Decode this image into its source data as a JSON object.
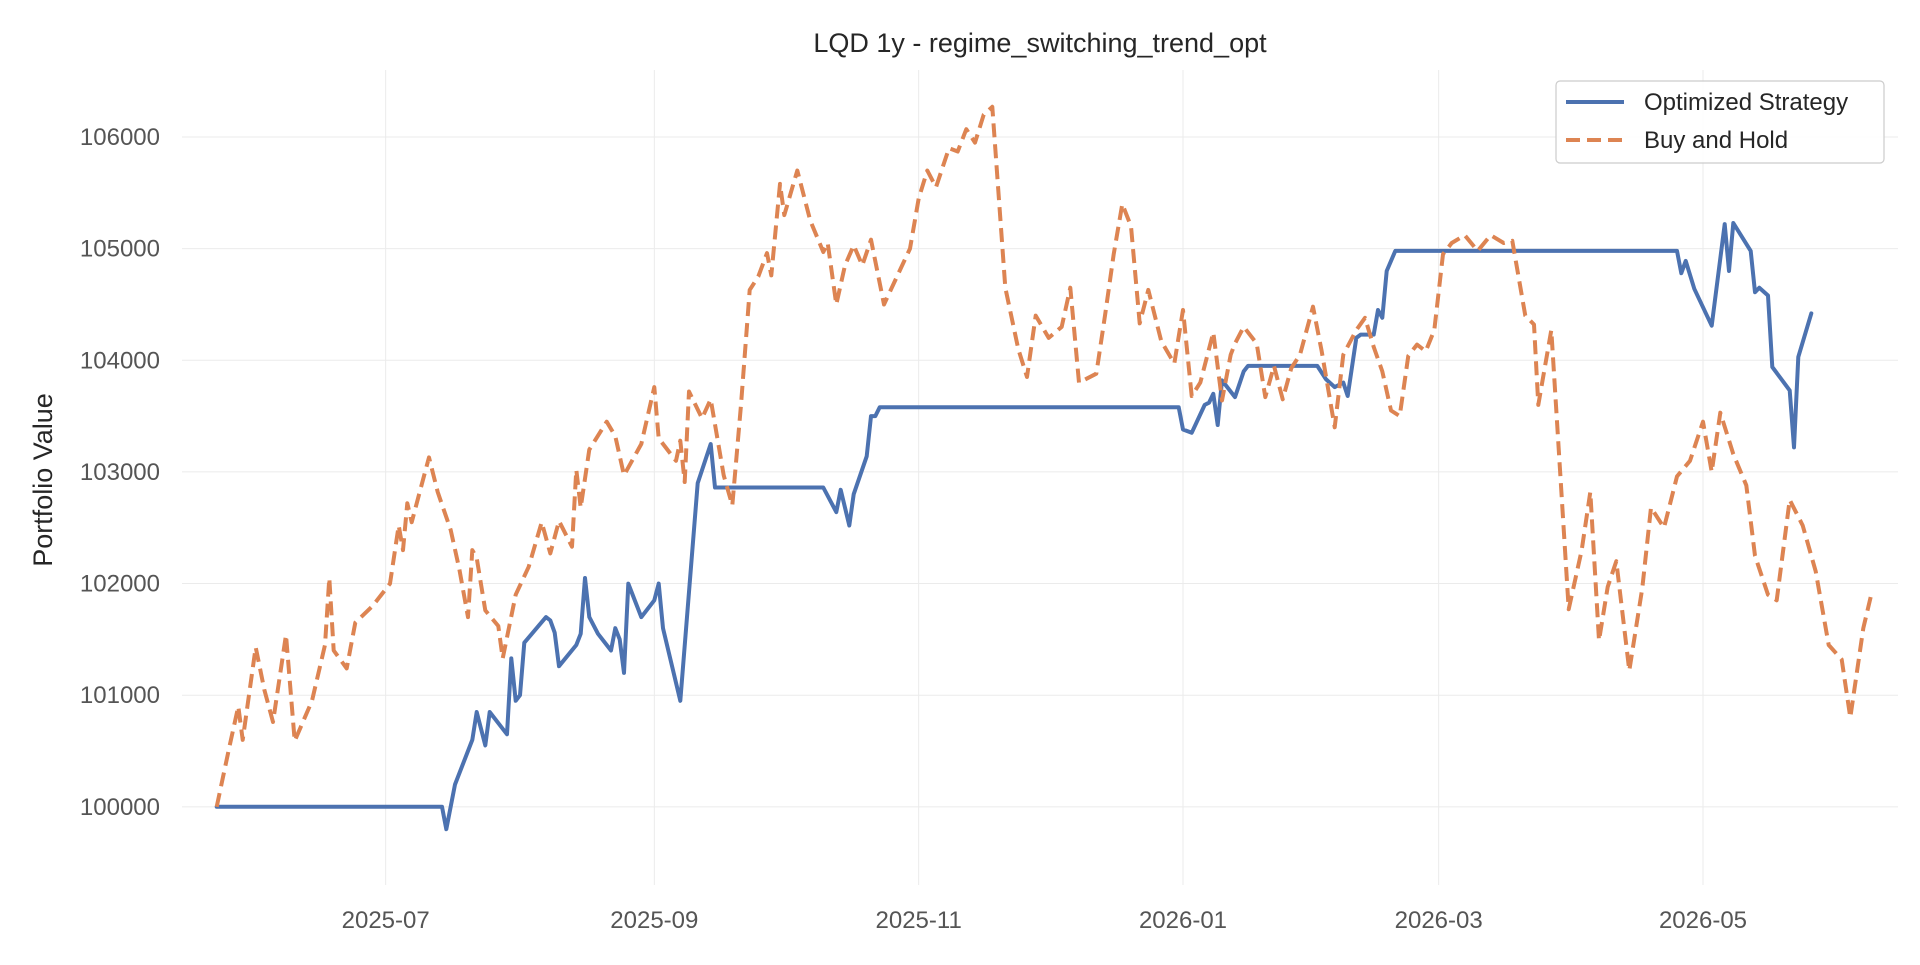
{
  "chart_data": {
    "type": "line",
    "title": "LQD 1y - regime_switching_trend_opt",
    "xlabel": "",
    "ylabel": "Portfolio Value",
    "x_type": "date",
    "xlim": [
      "2025-05-15",
      "2026-06-15"
    ],
    "ylim": [
      99300,
      106600
    ],
    "x_ticks": [
      "2025-07-01",
      "2025-09-01",
      "2025-11-01",
      "2026-01-01",
      "2026-03-01",
      "2026-05-01"
    ],
    "x_tick_labels": [
      "2025-07",
      "2025-09",
      "2025-11",
      "2026-01",
      "2026-03",
      "2026-05"
    ],
    "y_ticks": [
      100000,
      101000,
      102000,
      103000,
      104000,
      105000,
      106000
    ],
    "y_tick_labels": [
      "100000",
      "101000",
      "102000",
      "103000",
      "104000",
      "105000",
      "106000"
    ],
    "grid": true,
    "legend_position": "top-right",
    "series": [
      {
        "name": "Optimized Strategy",
        "color": "#4c72b0",
        "style": "solid",
        "points": [
          [
            "2025-05-23",
            100000
          ],
          [
            "2025-06-15",
            100000
          ],
          [
            "2025-07-01",
            100000
          ],
          [
            "2025-07-14",
            100000
          ],
          [
            "2025-07-15",
            99800
          ],
          [
            "2025-07-17",
            100200
          ],
          [
            "2025-07-21",
            100600
          ],
          [
            "2025-07-22",
            100850
          ],
          [
            "2025-07-24",
            100550
          ],
          [
            "2025-07-25",
            100850
          ],
          [
            "2025-07-29",
            100650
          ],
          [
            "2025-07-30",
            101330
          ],
          [
            "2025-07-31",
            100950
          ],
          [
            "2025-08-01",
            101000
          ],
          [
            "2025-08-02",
            101470
          ],
          [
            "2025-08-07",
            101700
          ],
          [
            "2025-08-08",
            101670
          ],
          [
            "2025-08-09",
            101560
          ],
          [
            "2025-08-10",
            101260
          ],
          [
            "2025-08-14",
            101450
          ],
          [
            "2025-08-15",
            101550
          ],
          [
            "2025-08-16",
            102050
          ],
          [
            "2025-08-17",
            101700
          ],
          [
            "2025-08-19",
            101550
          ],
          [
            "2025-08-22",
            101400
          ],
          [
            "2025-08-23",
            101600
          ],
          [
            "2025-08-24",
            101500
          ],
          [
            "2025-08-25",
            101200
          ],
          [
            "2025-08-26",
            102000
          ],
          [
            "2025-08-29",
            101700
          ],
          [
            "2025-09-01",
            101850
          ],
          [
            "2025-09-02",
            102000
          ],
          [
            "2025-09-03",
            101600
          ],
          [
            "2025-09-07",
            100950
          ],
          [
            "2025-09-11",
            102900
          ],
          [
            "2025-09-14",
            103250
          ],
          [
            "2025-09-15",
            102860
          ],
          [
            "2025-09-30",
            102860
          ],
          [
            "2025-10-10",
            102860
          ],
          [
            "2025-10-13",
            102640
          ],
          [
            "2025-10-14",
            102840
          ],
          [
            "2025-10-16",
            102520
          ],
          [
            "2025-10-17",
            102800
          ],
          [
            "2025-10-20",
            103140
          ],
          [
            "2025-10-21",
            103500
          ],
          [
            "2025-10-22",
            103500
          ],
          [
            "2025-10-23",
            103580
          ],
          [
            "2025-11-01",
            103580
          ],
          [
            "2025-12-01",
            103580
          ],
          [
            "2025-12-31",
            103580
          ],
          [
            "2026-01-01",
            103380
          ],
          [
            "2026-01-03",
            103350
          ],
          [
            "2026-01-06",
            103600
          ],
          [
            "2026-01-07",
            103620
          ],
          [
            "2026-01-08",
            103700
          ],
          [
            "2026-01-09",
            103420
          ],
          [
            "2026-01-10",
            103820
          ],
          [
            "2026-01-13",
            103670
          ],
          [
            "2026-01-15",
            103900
          ],
          [
            "2026-01-16",
            103950
          ],
          [
            "2026-01-20",
            103950
          ],
          [
            "2026-02-01",
            103950
          ],
          [
            "2026-02-03",
            103830
          ],
          [
            "2026-02-05",
            103760
          ],
          [
            "2026-02-07",
            103800
          ],
          [
            "2026-02-08",
            103680
          ],
          [
            "2026-02-10",
            104200
          ],
          [
            "2026-02-11",
            104230
          ],
          [
            "2026-02-14",
            104230
          ],
          [
            "2026-02-15",
            104450
          ],
          [
            "2026-02-16",
            104380
          ],
          [
            "2026-02-17",
            104800
          ],
          [
            "2026-02-19",
            104980
          ],
          [
            "2026-03-01",
            104980
          ],
          [
            "2026-04-01",
            104980
          ],
          [
            "2026-04-25",
            104980
          ],
          [
            "2026-04-26",
            104780
          ],
          [
            "2026-04-27",
            104890
          ],
          [
            "2026-04-29",
            104640
          ],
          [
            "2026-05-03",
            104310
          ],
          [
            "2026-05-06",
            105220
          ],
          [
            "2026-05-07",
            104800
          ],
          [
            "2026-05-08",
            105230
          ],
          [
            "2026-05-12",
            104980
          ],
          [
            "2026-05-13",
            104610
          ],
          [
            "2026-05-14",
            104650
          ],
          [
            "2026-05-16",
            104580
          ],
          [
            "2026-05-17",
            103940
          ],
          [
            "2026-05-21",
            103730
          ],
          [
            "2026-05-22",
            103220
          ],
          [
            "2026-05-23",
            104030
          ],
          [
            "2026-05-26",
            104420
          ]
        ]
      },
      {
        "name": "Buy and Hold",
        "color": "#dd8452",
        "style": "dashed",
        "points": [
          [
            "2025-05-23",
            100000
          ],
          [
            "2025-05-26",
            100550
          ],
          [
            "2025-05-28",
            100900
          ],
          [
            "2025-05-29",
            100600
          ],
          [
            "2025-06-01",
            101430
          ],
          [
            "2025-06-03",
            101050
          ],
          [
            "2025-06-05",
            100760
          ],
          [
            "2025-06-08",
            101540
          ],
          [
            "2025-06-10",
            100590
          ],
          [
            "2025-06-14",
            100950
          ],
          [
            "2025-06-17",
            101450
          ],
          [
            "2025-06-18",
            102050
          ],
          [
            "2025-06-19",
            101400
          ],
          [
            "2025-06-22",
            101240
          ],
          [
            "2025-06-24",
            101650
          ],
          [
            "2025-06-28",
            101800
          ],
          [
            "2025-07-02",
            102000
          ],
          [
            "2025-07-04",
            102520
          ],
          [
            "2025-07-05",
            102300
          ],
          [
            "2025-07-06",
            102720
          ],
          [
            "2025-07-07",
            102550
          ],
          [
            "2025-07-09",
            102840
          ],
          [
            "2025-07-11",
            103130
          ],
          [
            "2025-07-13",
            102820
          ],
          [
            "2025-07-16",
            102480
          ],
          [
            "2025-07-18",
            102130
          ],
          [
            "2025-07-20",
            101700
          ],
          [
            "2025-07-21",
            102300
          ],
          [
            "2025-07-22",
            102230
          ],
          [
            "2025-07-24",
            101760
          ],
          [
            "2025-07-27",
            101620
          ],
          [
            "2025-07-28",
            101330
          ],
          [
            "2025-07-31",
            101900
          ],
          [
            "2025-08-03",
            102150
          ],
          [
            "2025-08-06",
            102550
          ],
          [
            "2025-08-08",
            102270
          ],
          [
            "2025-08-10",
            102560
          ],
          [
            "2025-08-13",
            102330
          ],
          [
            "2025-08-14",
            103020
          ],
          [
            "2025-08-15",
            102680
          ],
          [
            "2025-08-17",
            103200
          ],
          [
            "2025-08-21",
            103450
          ],
          [
            "2025-08-23",
            103320
          ],
          [
            "2025-08-25",
            102970
          ],
          [
            "2025-08-29",
            103250
          ],
          [
            "2025-09-01",
            103760
          ],
          [
            "2025-09-02",
            103300
          ],
          [
            "2025-09-06",
            103100
          ],
          [
            "2025-09-07",
            103280
          ],
          [
            "2025-09-08",
            102910
          ],
          [
            "2025-09-09",
            103720
          ],
          [
            "2025-09-12",
            103480
          ],
          [
            "2025-09-14",
            103650
          ],
          [
            "2025-09-17",
            102970
          ],
          [
            "2025-09-19",
            102700
          ],
          [
            "2025-09-21",
            103600
          ],
          [
            "2025-09-23",
            104630
          ],
          [
            "2025-09-25",
            104750
          ],
          [
            "2025-09-27",
            104960
          ],
          [
            "2025-09-28",
            104760
          ],
          [
            "2025-09-30",
            105580
          ],
          [
            "2025-10-01",
            105300
          ],
          [
            "2025-10-04",
            105700
          ],
          [
            "2025-10-07",
            105250
          ],
          [
            "2025-10-10",
            104970
          ],
          [
            "2025-10-11",
            105050
          ],
          [
            "2025-10-13",
            104500
          ],
          [
            "2025-10-15",
            104850
          ],
          [
            "2025-10-17",
            105030
          ],
          [
            "2025-10-19",
            104850
          ],
          [
            "2025-10-21",
            105080
          ],
          [
            "2025-10-24",
            104500
          ],
          [
            "2025-10-27",
            104750
          ],
          [
            "2025-10-30",
            105000
          ],
          [
            "2025-11-01",
            105450
          ],
          [
            "2025-11-03",
            105700
          ],
          [
            "2025-11-05",
            105550
          ],
          [
            "2025-11-08",
            105900
          ],
          [
            "2025-11-10",
            105870
          ],
          [
            "2025-11-12",
            106070
          ],
          [
            "2025-11-14",
            105950
          ],
          [
            "2025-11-16",
            106200
          ],
          [
            "2025-11-18",
            106270
          ],
          [
            "2025-11-21",
            104650
          ],
          [
            "2025-11-24",
            104100
          ],
          [
            "2025-11-26",
            103850
          ],
          [
            "2025-11-28",
            104400
          ],
          [
            "2025-12-01",
            104200
          ],
          [
            "2025-12-04",
            104300
          ],
          [
            "2025-12-06",
            104650
          ],
          [
            "2025-12-08",
            103800
          ],
          [
            "2025-12-12",
            103880
          ],
          [
            "2025-12-14",
            104400
          ],
          [
            "2025-12-16",
            104950
          ],
          [
            "2025-12-18",
            105400
          ],
          [
            "2025-12-20",
            105200
          ],
          [
            "2025-12-22",
            104330
          ],
          [
            "2025-12-24",
            104630
          ],
          [
            "2025-12-27",
            104170
          ],
          [
            "2025-12-30",
            103970
          ],
          [
            "2026-01-01",
            104450
          ],
          [
            "2026-01-03",
            103680
          ],
          [
            "2026-01-05",
            103800
          ],
          [
            "2026-01-08",
            104250
          ],
          [
            "2026-01-10",
            103640
          ],
          [
            "2026-01-12",
            104050
          ],
          [
            "2026-01-13",
            104150
          ],
          [
            "2026-01-15",
            104300
          ],
          [
            "2026-01-18",
            104150
          ],
          [
            "2026-01-20",
            103670
          ],
          [
            "2026-01-22",
            103950
          ],
          [
            "2026-01-24",
            103650
          ],
          [
            "2026-01-26",
            103930
          ],
          [
            "2026-01-28",
            104050
          ],
          [
            "2026-01-31",
            104480
          ],
          [
            "2026-02-02",
            104080
          ],
          [
            "2026-02-05",
            103400
          ],
          [
            "2026-02-07",
            104050
          ],
          [
            "2026-02-10",
            104270
          ],
          [
            "2026-02-12",
            104380
          ],
          [
            "2026-02-14",
            104120
          ],
          [
            "2026-02-16",
            103900
          ],
          [
            "2026-02-18",
            103550
          ],
          [
            "2026-02-20",
            103500
          ],
          [
            "2026-02-22",
            104040
          ],
          [
            "2026-02-24",
            104140
          ],
          [
            "2026-02-26",
            104080
          ],
          [
            "2026-02-28",
            104270
          ],
          [
            "2026-03-02",
            104950
          ],
          [
            "2026-03-04",
            105050
          ],
          [
            "2026-03-07",
            105120
          ],
          [
            "2026-03-10",
            104980
          ],
          [
            "2026-03-13",
            105120
          ],
          [
            "2026-03-16",
            105050
          ],
          [
            "2026-03-18",
            105070
          ],
          [
            "2026-03-21",
            104400
          ],
          [
            "2026-03-23",
            104320
          ],
          [
            "2026-03-24",
            103600
          ],
          [
            "2026-03-27",
            104270
          ],
          [
            "2026-03-31",
            101770
          ],
          [
            "2026-04-03",
            102300
          ],
          [
            "2026-04-05",
            102820
          ],
          [
            "2026-04-07",
            101490
          ],
          [
            "2026-04-09",
            101970
          ],
          [
            "2026-04-11",
            102200
          ],
          [
            "2026-04-14",
            101220
          ],
          [
            "2026-04-17",
            101960
          ],
          [
            "2026-04-19",
            102680
          ],
          [
            "2026-04-22",
            102500
          ],
          [
            "2026-04-25",
            102960
          ],
          [
            "2026-04-28",
            103100
          ],
          [
            "2026-05-01",
            103450
          ],
          [
            "2026-05-03",
            103000
          ],
          [
            "2026-05-05",
            103530
          ],
          [
            "2026-05-08",
            103160
          ],
          [
            "2026-05-11",
            102880
          ],
          [
            "2026-05-13",
            102250
          ],
          [
            "2026-05-16",
            101900
          ],
          [
            "2026-05-18",
            101850
          ],
          [
            "2026-05-21",
            102750
          ],
          [
            "2026-05-24",
            102520
          ],
          [
            "2026-05-27",
            102110
          ],
          [
            "2026-05-30",
            101450
          ],
          [
            "2026-06-02",
            101320
          ],
          [
            "2026-06-04",
            100800
          ],
          [
            "2026-06-07",
            101600
          ],
          [
            "2026-06-09",
            101930
          ]
        ]
      }
    ]
  }
}
